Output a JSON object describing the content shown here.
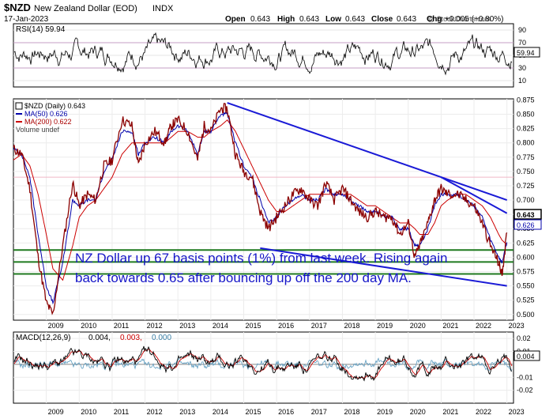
{
  "header": {
    "symbol": "$NZD",
    "name": "New Zealand Dollar (EOD)",
    "index": "INDX",
    "date": "17-Jan-2023",
    "open_label": "Open",
    "open": "0.643",
    "high_label": "High",
    "high": "0.643",
    "low_label": "Low",
    "low": "0.643",
    "close_label": "Close",
    "close": "0.643",
    "chg_label": "Chg",
    "chg": "+0.005 (+0.80%)",
    "watermark": "@ StockCharts.com"
  },
  "chart_data": [
    {
      "type": "line",
      "panel": "rsi",
      "legend": "RSI(14) 59.94",
      "ylim": [
        0,
        100
      ],
      "ticks": [
        10,
        30,
        50,
        70,
        90
      ],
      "y_tick_labels": [
        "10",
        "30",
        "50",
        "70",
        "90"
      ],
      "last_value_label": "59.94",
      "reference_lines": [
        30,
        70
      ],
      "color": "#000000"
    },
    {
      "type": "line",
      "panel": "price",
      "title": "$NZD (Daily) 0.643",
      "ylim": [
        0.49,
        0.877
      ],
      "y_tick_labels": [
        "0.500",
        "0.525",
        "0.550",
        "0.575",
        "0.600",
        "0.625",
        "0.650",
        "0.675",
        "0.700",
        "0.725",
        "0.750",
        "0.775",
        "0.800",
        "0.825",
        "0.850",
        "0.875"
      ],
      "x": [
        2008.0,
        2008.25,
        2008.5,
        2008.75,
        2009.0,
        2009.2,
        2009.5,
        2009.8,
        2010.0,
        2010.25,
        2010.5,
        2010.75,
        2011.0,
        2011.3,
        2011.6,
        2011.8,
        2012.0,
        2012.3,
        2012.6,
        2012.8,
        2013.0,
        2013.3,
        2013.6,
        2013.8,
        2014.0,
        2014.3,
        2014.5,
        2014.75,
        2015.0,
        2015.25,
        2015.5,
        2015.75,
        2016.0,
        2016.25,
        2016.5,
        2016.75,
        2017.0,
        2017.25,
        2017.5,
        2017.75,
        2018.0,
        2018.25,
        2018.5,
        2018.75,
        2019.0,
        2019.25,
        2019.5,
        2019.75,
        2020.0,
        2020.2,
        2020.35,
        2020.6,
        2020.8,
        2021.0,
        2021.2,
        2021.5,
        2021.75,
        2022.0,
        2022.25,
        2022.5,
        2022.75,
        2022.85,
        2023.0
      ],
      "series": [
        {
          "name": "$NZD (Daily) 0.643",
          "color": "#8b0000",
          "values": [
            0.79,
            0.78,
            0.72,
            0.6,
            0.52,
            0.5,
            0.62,
            0.73,
            0.69,
            0.71,
            0.7,
            0.76,
            0.77,
            0.84,
            0.83,
            0.76,
            0.8,
            0.82,
            0.8,
            0.83,
            0.84,
            0.82,
            0.77,
            0.83,
            0.82,
            0.86,
            0.86,
            0.78,
            0.75,
            0.74,
            0.68,
            0.65,
            0.67,
            0.69,
            0.71,
            0.72,
            0.7,
            0.69,
            0.73,
            0.7,
            0.72,
            0.7,
            0.68,
            0.67,
            0.68,
            0.67,
            0.67,
            0.64,
            0.66,
            0.6,
            0.62,
            0.66,
            0.7,
            0.72,
            0.71,
            0.71,
            0.7,
            0.69,
            0.66,
            0.62,
            0.59,
            0.57,
            0.643
          ]
        },
        {
          "name": "MA(50) 0.626",
          "color": "#0000aa",
          "values": [
            0.79,
            0.78,
            0.74,
            0.64,
            0.55,
            0.52,
            0.59,
            0.7,
            0.69,
            0.7,
            0.7,
            0.75,
            0.77,
            0.82,
            0.82,
            0.78,
            0.8,
            0.81,
            0.8,
            0.82,
            0.83,
            0.82,
            0.78,
            0.82,
            0.82,
            0.85,
            0.85,
            0.8,
            0.76,
            0.74,
            0.7,
            0.66,
            0.67,
            0.69,
            0.7,
            0.71,
            0.7,
            0.7,
            0.72,
            0.71,
            0.71,
            0.7,
            0.69,
            0.68,
            0.68,
            0.67,
            0.67,
            0.65,
            0.65,
            0.62,
            0.62,
            0.65,
            0.69,
            0.71,
            0.71,
            0.71,
            0.7,
            0.69,
            0.67,
            0.63,
            0.6,
            0.59,
            0.626
          ]
        },
        {
          "name": "MA(200) 0.622",
          "color": "#cc0000",
          "values": [
            0.77,
            0.78,
            0.76,
            0.71,
            0.64,
            0.58,
            0.56,
            0.62,
            0.67,
            0.69,
            0.7,
            0.72,
            0.74,
            0.78,
            0.8,
            0.8,
            0.8,
            0.8,
            0.8,
            0.81,
            0.82,
            0.82,
            0.81,
            0.81,
            0.82,
            0.83,
            0.84,
            0.82,
            0.79,
            0.76,
            0.73,
            0.7,
            0.68,
            0.68,
            0.69,
            0.7,
            0.71,
            0.71,
            0.71,
            0.71,
            0.71,
            0.71,
            0.7,
            0.69,
            0.69,
            0.68,
            0.67,
            0.66,
            0.66,
            0.65,
            0.64,
            0.64,
            0.66,
            0.69,
            0.7,
            0.71,
            0.71,
            0.7,
            0.69,
            0.67,
            0.64,
            0.63,
            0.622
          ]
        }
      ],
      "legend_extra": "Volume undef",
      "last_value_labels": [
        "0.643",
        "0.626"
      ],
      "annotation": [
        "NZ Dollar up 67 basis points (1%) from last week. Rising again",
        "back towards 0.65 after bouncing up off the 200 day MA."
      ],
      "horizontal_levels": [
        0.6126,
        0.5917,
        0.5708
      ],
      "trendlines": [
        {
          "from": [
            2014.5,
            0.87
          ],
          "to": [
            2023.0,
            0.7
          ]
        },
        {
          "from": [
            2021.0,
            0.74
          ],
          "to": [
            2023.0,
            0.677
          ]
        },
        {
          "from": [
            2015.5,
            0.616
          ],
          "to": [
            2023.0,
            0.55
          ]
        }
      ],
      "x_tick_labels": [
        "2009",
        "2010",
        "2011",
        "2012",
        "2013",
        "2014",
        "2015",
        "2016",
        "2017",
        "2018",
        "2019",
        "2020",
        "2021",
        "2022",
        "2023"
      ]
    },
    {
      "type": "line",
      "panel": "macd",
      "legend_prefix": "MACD(12,26,9)",
      "legend_values": [
        "0.004,",
        "0.003,",
        "0.000"
      ],
      "ylim": [
        -0.03,
        0.025
      ],
      "y_tick_labels": [
        "0.02",
        "0.01",
        "-0.01",
        "-0.02"
      ],
      "last_value_label": "0.004",
      "x_tick_labels": [
        "2009",
        "2010",
        "2011",
        "2012",
        "2013",
        "2014",
        "2015",
        "2016",
        "2017",
        "2018",
        "2019",
        "2020",
        "2021",
        "2022",
        "2023"
      ]
    }
  ]
}
